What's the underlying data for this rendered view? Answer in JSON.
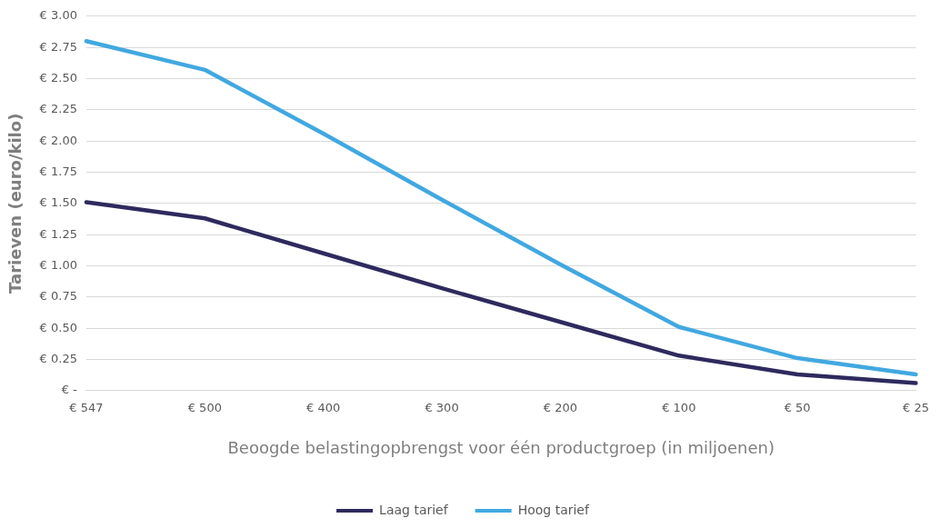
{
  "chart_data": {
    "type": "line",
    "xlabel": "Beoogde belastingopbrengst voor één productgroep (in miljoenen)",
    "ylabel": "Tarieven (euro/kilo)",
    "categories": [
      "€ 547",
      "€ 500",
      "€ 400",
      "€ 300",
      "€ 200",
      "€ 100",
      "€ 50",
      "€ 25"
    ],
    "series": [
      {
        "name": "Laag tarief",
        "color": "#2e2a5e",
        "values": [
          1.51,
          1.38,
          1.1,
          0.82,
          0.55,
          0.28,
          0.13,
          0.06
        ]
      },
      {
        "name": "Hoog tarief",
        "color": "#41a8e0",
        "values": [
          2.8,
          2.57,
          2.06,
          1.53,
          1.01,
          0.51,
          0.26,
          0.13
        ]
      }
    ],
    "ylim": [
      0,
      3
    ],
    "yticks": [
      {
        "value": 0,
        "label": "€ -"
      },
      {
        "value": 0.25,
        "label": "€ 0.25"
      },
      {
        "value": 0.5,
        "label": "€ 0.50"
      },
      {
        "value": 0.75,
        "label": "€ 0.75"
      },
      {
        "value": 1,
        "label": "€ 1.00"
      },
      {
        "value": 1.25,
        "label": "€ 1.25"
      },
      {
        "value": 1.5,
        "label": "€ 1.50"
      },
      {
        "value": 1.75,
        "label": "€ 1.75"
      },
      {
        "value": 2,
        "label": "€ 2.00"
      },
      {
        "value": 2.25,
        "label": "€ 2.25"
      },
      {
        "value": 2.5,
        "label": "€ 2.50"
      },
      {
        "value": 2.75,
        "label": "€ 2.75"
      },
      {
        "value": 3,
        "label": "€ 3.00"
      }
    ],
    "grid": "y",
    "legend": "bottom",
    "marker": "none",
    "line_style": "solid"
  }
}
